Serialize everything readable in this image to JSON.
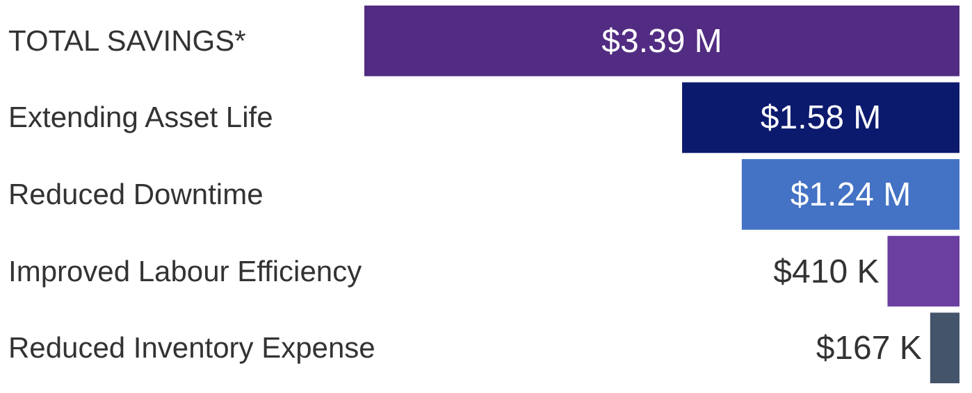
{
  "chart_data": {
    "type": "bar",
    "orientation": "horizontal",
    "categories": [
      "TOTAL SAVINGS*",
      "Extending Asset Life",
      "Reduced Downtime",
      "Improved Labour Efficiency",
      "Reduced Inventory Expense"
    ],
    "values": [
      3.39,
      1.58,
      1.24,
      0.41,
      0.167
    ],
    "colors": [
      "#522c82",
      "#0c1a6e",
      "#4472c4",
      "#6a3fa0",
      "#44546a"
    ],
    "value_labels": [
      "$3.39 M",
      "$1.58 M",
      "$1.24 M",
      "$410 K",
      "$167 K"
    ]
  }
}
